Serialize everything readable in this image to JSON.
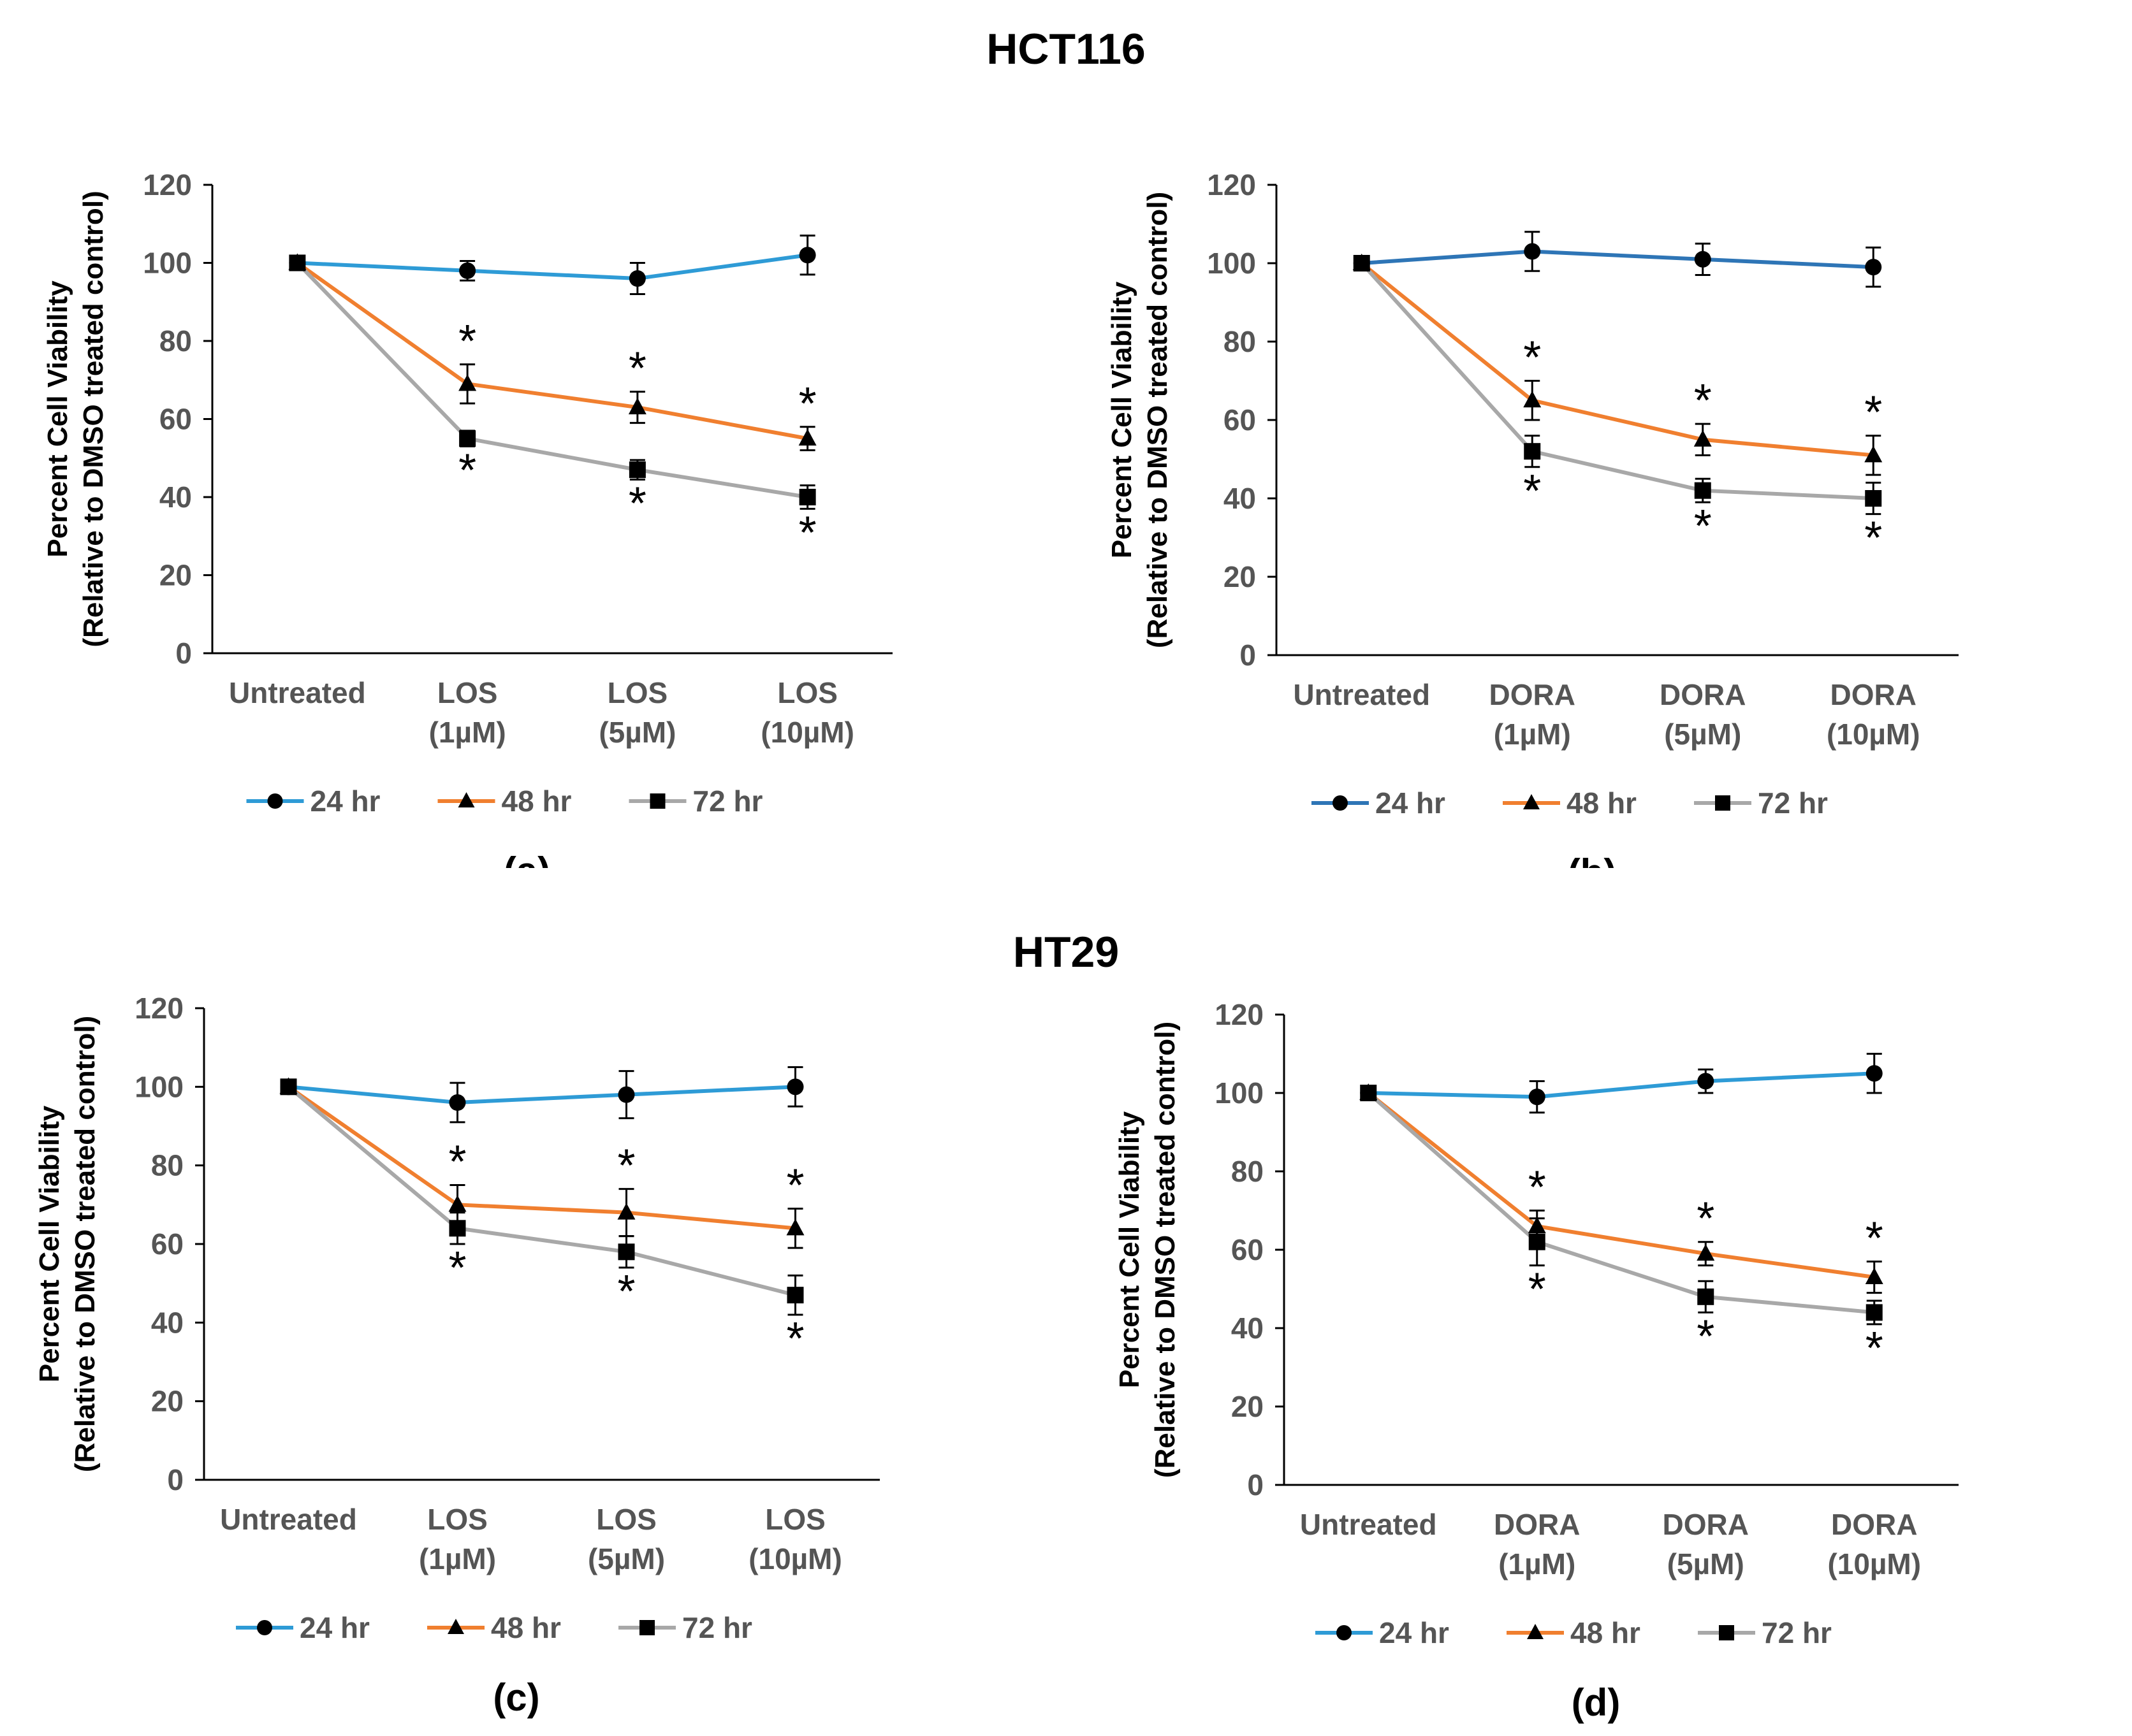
{
  "groups": {
    "top": "HCT116",
    "bottom": "HT29"
  },
  "colors": {
    "24 hr": "#2e9bd6",
    "48 hr": "#f07f2f",
    "72 hr": "#a8a8a8"
  },
  "chart_data": [
    {
      "type": "line",
      "panel_label": "(a)",
      "ylabel_line1": "Percent Cell Viability",
      "ylabel_line2": "(Relative to DMSO treated control)",
      "ylim": [
        0,
        120
      ],
      "yticks": [
        "0",
        "20",
        "40",
        "60",
        "80",
        "100",
        "120"
      ],
      "categories": [
        [
          "Untreated"
        ],
        [
          "LOS",
          "(1µM)"
        ],
        [
          "LOS",
          "(5µM)"
        ],
        [
          "LOS",
          "(10µM)"
        ]
      ],
      "series": [
        {
          "name": "24 hr",
          "marker": "circle",
          "color": "#2e9bd6",
          "values": [
            100,
            98,
            96,
            102
          ],
          "errors": [
            0,
            2.5,
            4,
            5
          ],
          "sig_above": [],
          "sig_below": []
        },
        {
          "name": "48 hr",
          "marker": "triangle",
          "color": "#f07f2f",
          "values": [
            100,
            69,
            63,
            55
          ],
          "errors": [
            0,
            5,
            4,
            3
          ],
          "sig_above": [
            1,
            2,
            3
          ],
          "sig_below": []
        },
        {
          "name": "72 hr",
          "marker": "square",
          "color": "#a8a8a8",
          "values": [
            100,
            55,
            47,
            40
          ],
          "errors": [
            0,
            2,
            2.5,
            3
          ],
          "sig_above": [],
          "sig_below": [
            1,
            2,
            3
          ]
        }
      ],
      "sig_symbol": "*"
    },
    {
      "type": "line",
      "panel_label": "(b)",
      "ylabel_line1": "Percent Cell Viability",
      "ylabel_line2": "(Relative to DMSO treated control)",
      "ylim": [
        0,
        120
      ],
      "yticks": [
        "0",
        "20",
        "40",
        "60",
        "80",
        "100",
        "120"
      ],
      "categories": [
        [
          "Untreated"
        ],
        [
          "DORA",
          "(1µM)"
        ],
        [
          "DORA",
          "(5µM)"
        ],
        [
          "DORA",
          "(10µM)"
        ]
      ],
      "series": [
        {
          "name": "24 hr",
          "marker": "circle",
          "color": "#2e75b6",
          "values": [
            100,
            103,
            101,
            99
          ],
          "errors": [
            0,
            5,
            4,
            5
          ],
          "sig_above": [],
          "sig_below": []
        },
        {
          "name": "48 hr",
          "marker": "triangle",
          "color": "#f07f2f",
          "values": [
            100,
            65,
            55,
            51
          ],
          "errors": [
            0,
            5,
            4,
            5
          ],
          "sig_above": [
            1,
            2,
            3
          ],
          "sig_below": []
        },
        {
          "name": "72 hr",
          "marker": "square",
          "color": "#a8a8a8",
          "values": [
            100,
            52,
            42,
            40
          ],
          "errors": [
            0,
            4,
            3,
            4
          ],
          "sig_above": [],
          "sig_below": [
            1,
            2,
            3
          ]
        }
      ],
      "sig_symbol": "*"
    },
    {
      "type": "line",
      "panel_label": "(c)",
      "ylabel_line1": "Percent Cell Viability",
      "ylabel_line2": "(Relative to DMSO treated control)",
      "ylim": [
        0,
        120
      ],
      "yticks": [
        "0",
        "20",
        "40",
        "60",
        "80",
        "100",
        "120"
      ],
      "categories": [
        [
          "Untreated"
        ],
        [
          "LOS",
          "(1µM)"
        ],
        [
          "LOS",
          "(5µM)"
        ],
        [
          "LOS",
          "(10µM)"
        ]
      ],
      "series": [
        {
          "name": "24 hr",
          "marker": "circle",
          "color": "#2e9bd6",
          "values": [
            100,
            96,
            98,
            100
          ],
          "errors": [
            0,
            5,
            6,
            5
          ],
          "sig_above": [],
          "sig_below": []
        },
        {
          "name": "48 hr",
          "marker": "triangle",
          "color": "#f07f2f",
          "values": [
            100,
            70,
            68,
            64
          ],
          "errors": [
            0,
            5,
            6,
            5
          ],
          "sig_above": [
            1,
            2,
            3
          ],
          "sig_below": []
        },
        {
          "name": "72 hr",
          "marker": "square",
          "color": "#a8a8a8",
          "values": [
            100,
            64,
            58,
            47
          ],
          "errors": [
            0,
            4,
            4,
            5
          ],
          "sig_above": [],
          "sig_below": [
            1,
            2,
            3
          ]
        }
      ],
      "sig_symbol": "*"
    },
    {
      "type": "line",
      "panel_label": "(d)",
      "ylabel_line1": "Percent Cell Viability",
      "ylabel_line2": "(Relative to DMSO treated control)",
      "ylim": [
        0,
        120
      ],
      "yticks": [
        "0",
        "20",
        "40",
        "60",
        "80",
        "100",
        "120"
      ],
      "categories": [
        [
          "Untreated"
        ],
        [
          "DORA",
          "(1µM)"
        ],
        [
          "DORA",
          "(5µM)"
        ],
        [
          "DORA",
          "(10µM)"
        ]
      ],
      "series": [
        {
          "name": "24 hr",
          "marker": "circle",
          "color": "#2e9bd6",
          "values": [
            100,
            99,
            103,
            105
          ],
          "errors": [
            0,
            4,
            3,
            5
          ],
          "sig_above": [],
          "sig_below": []
        },
        {
          "name": "48 hr",
          "marker": "triangle",
          "color": "#f07f2f",
          "values": [
            100,
            66,
            59,
            53
          ],
          "errors": [
            0,
            4,
            3,
            4
          ],
          "sig_above": [
            1,
            2,
            3
          ],
          "sig_below": []
        },
        {
          "name": "72 hr",
          "marker": "square",
          "color": "#a8a8a8",
          "values": [
            100,
            62,
            48,
            44
          ],
          "errors": [
            0,
            6,
            4,
            3
          ],
          "sig_above": [],
          "sig_below": [
            1,
            2,
            3
          ]
        }
      ],
      "sig_symbol": "*"
    }
  ]
}
